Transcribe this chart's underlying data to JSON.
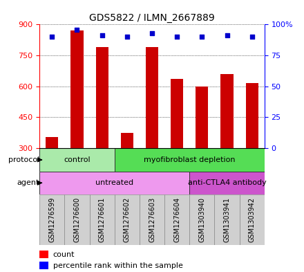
{
  "title": "GDS5822 / ILMN_2667889",
  "samples": [
    "GSM1276599",
    "GSM1276600",
    "GSM1276601",
    "GSM1276602",
    "GSM1276603",
    "GSM1276604",
    "GSM1303940",
    "GSM1303941",
    "GSM1303942"
  ],
  "counts": [
    355,
    870,
    790,
    375,
    790,
    635,
    600,
    660,
    615
  ],
  "percentiles": [
    90,
    96,
    91,
    90,
    93,
    90,
    90,
    91,
    90
  ],
  "ylim_left": [
    300,
    900
  ],
  "ylim_right": [
    0,
    100
  ],
  "yticks_left": [
    300,
    450,
    600,
    750,
    900
  ],
  "yticks_right": [
    0,
    25,
    50,
    75,
    100
  ],
  "bar_color": "#cc0000",
  "dot_color": "#0000cc",
  "plot_bg": "#ffffff",
  "sample_box_bg": "#d0d0d0",
  "protocol_groups": [
    {
      "label": "control",
      "start": 0,
      "end": 3,
      "color": "#aaeaaa"
    },
    {
      "label": "myofibroblast depletion",
      "start": 3,
      "end": 9,
      "color": "#55dd55"
    }
  ],
  "agent_groups": [
    {
      "label": "untreated",
      "start": 0,
      "end": 6,
      "color": "#ee99ee"
    },
    {
      "label": "anti-CTLA4 antibody",
      "start": 6,
      "end": 9,
      "color": "#cc55cc"
    }
  ],
  "protocol_label": "protocol",
  "agent_label": "agent",
  "legend_count_label": "count",
  "legend_pct_label": "percentile rank within the sample"
}
